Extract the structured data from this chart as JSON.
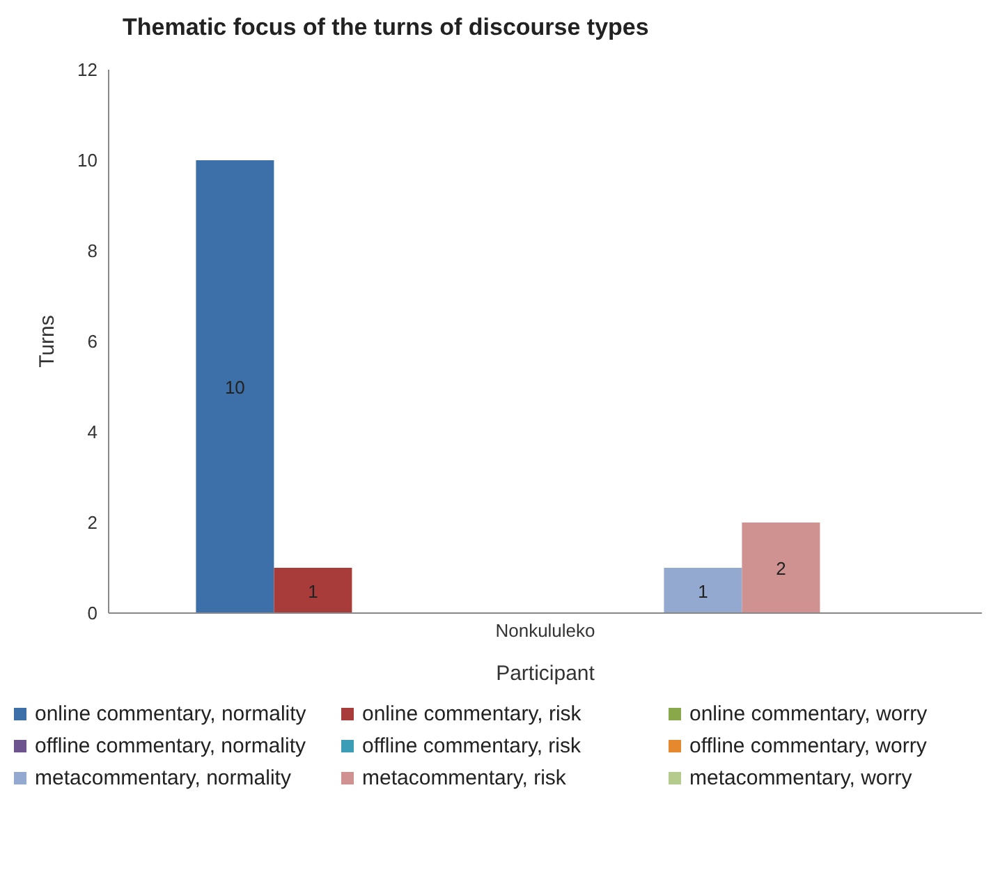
{
  "chart_data": {
    "type": "bar",
    "title": "Thematic focus of the turns of discourse types",
    "xlabel": "Participant",
    "ylabel": "Turns",
    "categories": [
      "Nonkululeko"
    ],
    "ylim": [
      0,
      12
    ],
    "yticks": [
      0,
      2,
      4,
      6,
      8,
      10,
      12
    ],
    "grid": false,
    "legend": "bottom",
    "series": [
      {
        "name": "online commentary, normality",
        "color": "#3d6fa8",
        "values": [
          10
        ],
        "value_labels": [
          "10"
        ]
      },
      {
        "name": "online commentary, risk",
        "color": "#a83c3a",
        "values": [
          1
        ],
        "value_labels": [
          "1"
        ]
      },
      {
        "name": "online commentary, worry",
        "color": "#88a84a",
        "values": [
          0
        ],
        "value_labels": [
          null
        ]
      },
      {
        "name": "offline commentary, normality",
        "color": "#6e548f",
        "values": [
          0
        ],
        "value_labels": [
          null
        ]
      },
      {
        "name": "offline commentary, risk",
        "color": "#3c9db7",
        "values": [
          0
        ],
        "value_labels": [
          null
        ]
      },
      {
        "name": "offline commentary, worry",
        "color": "#e6892e",
        "values": [
          0
        ],
        "value_labels": [
          null
        ]
      },
      {
        "name": "metacommentary, normality",
        "color": "#93a9cf",
        "values": [
          1
        ],
        "value_labels": [
          "1"
        ]
      },
      {
        "name": "metacommentary, risk",
        "color": "#d09290",
        "values": [
          2
        ],
        "value_labels": [
          "2"
        ]
      },
      {
        "name": "metacommentary, worry",
        "color": "#b5cb8d",
        "values": [
          0
        ],
        "value_labels": [
          null
        ]
      }
    ]
  }
}
